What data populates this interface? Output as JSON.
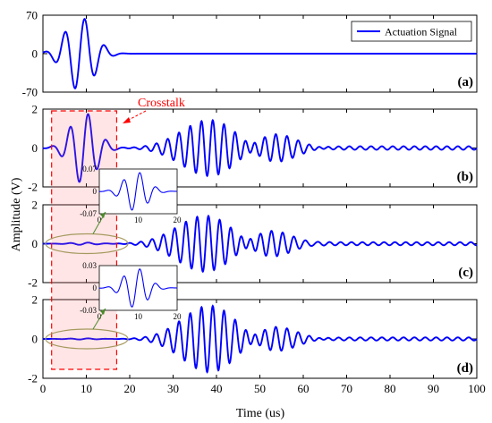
{
  "chart_data": {
    "type": "line",
    "xlabel": "Time (us)",
    "ylabel": "Amplitude (V)",
    "xlim": [
      0,
      100
    ],
    "xticks": [
      "0",
      "10",
      "20",
      "30",
      "40",
      "50",
      "60",
      "70",
      "80",
      "90",
      "100"
    ],
    "grid": false,
    "legend": {
      "entry": "Actuation Signal",
      "placement": "top-right"
    },
    "line_color": "#0000ff",
    "annotation": {
      "text": "Crosstalk",
      "color": "#ff0000",
      "region_x": [
        2,
        17
      ]
    },
    "panels": [
      {
        "label": "(a)",
        "ylim": [
          -70,
          70
        ],
        "yticks": [
          "70",
          "0",
          "-70"
        ],
        "series": [
          {
            "kind": "burst",
            "center": 8.5,
            "amp": 67,
            "period": 4.6,
            "sigma": 3.3
          }
        ]
      },
      {
        "label": "(b)",
        "ylim": [
          -2,
          2
        ],
        "yticks": [
          "2",
          "0",
          "-2"
        ],
        "series": [
          {
            "kind": "burst",
            "center": 9.4,
            "amp": 1.85,
            "period": 4.2,
            "sigma": 3.0
          },
          {
            "kind": "burst",
            "center": 38.5,
            "amp": 1.45,
            "period": 2.6,
            "sigma": 6.5
          },
          {
            "kind": "burst",
            "center": 53,
            "amp": 0.8,
            "period": 2.6,
            "sigma": 5
          },
          {
            "kind": "tail",
            "start": 60,
            "amp": 0.09,
            "period": 2.5
          }
        ]
      },
      {
        "label": "(c)",
        "ylim": [
          -2,
          2
        ],
        "yticks": [
          "2",
          "0",
          "-2"
        ],
        "series": [
          {
            "kind": "burst",
            "center": 9.4,
            "amp": 0.06,
            "period": 4.2,
            "sigma": 3.0
          },
          {
            "kind": "burst",
            "center": 37.5,
            "amp": 1.45,
            "period": 2.6,
            "sigma": 6.5
          },
          {
            "kind": "burst",
            "center": 52,
            "amp": 0.75,
            "period": 2.6,
            "sigma": 5
          },
          {
            "kind": "tail",
            "start": 58,
            "amp": 0.08,
            "period": 2.5
          }
        ],
        "inset": {
          "xlim": [
            0,
            20
          ],
          "ylim": [
            -0.07,
            0.07
          ],
          "yticks": [
            "0.07",
            "0",
            "-0.07"
          ],
          "xticks": [
            "0",
            "10",
            "20"
          ],
          "series": [
            {
              "kind": "burst",
              "center": 9.4,
              "amp": 0.062,
              "period": 4.2,
              "sigma": 3.0
            }
          ]
        }
      },
      {
        "label": "(d)",
        "ylim": [
          -2,
          2
        ],
        "yticks": [
          "2",
          "0",
          "-2"
        ],
        "series": [
          {
            "kind": "burst",
            "center": 9.4,
            "amp": 0.03,
            "period": 4.2,
            "sigma": 3.0
          },
          {
            "kind": "burst",
            "center": 38.5,
            "amp": 1.7,
            "period": 2.6,
            "sigma": 6.3
          },
          {
            "kind": "burst",
            "center": 53,
            "amp": 0.7,
            "period": 2.6,
            "sigma": 5
          },
          {
            "kind": "tail",
            "start": 60,
            "amp": 0.08,
            "period": 2.5
          }
        ],
        "inset": {
          "xlim": [
            0,
            20
          ],
          "ylim": [
            -0.03,
            0.03
          ],
          "yticks": [
            "0.03",
            "0",
            "-0.03"
          ],
          "xticks": [
            "0",
            "10",
            "20"
          ],
          "series": [
            {
              "kind": "burst",
              "center": 9.4,
              "amp": 0.027,
              "period": 4.2,
              "sigma": 3.0
            }
          ]
        }
      }
    ]
  }
}
